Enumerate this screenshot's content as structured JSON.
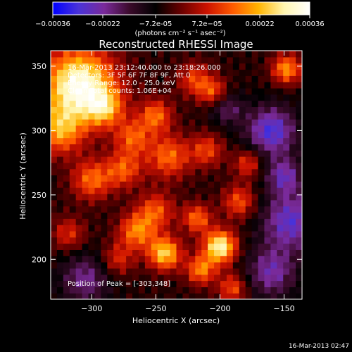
{
  "colorbar": {
    "tick_labels": [
      "-0.00036",
      "-0.00022",
      "-7.2e-05",
      "7.2e-05",
      "0.00022",
      "0.00036"
    ],
    "range": [
      -0.00036,
      0.00036
    ],
    "units": "(photons cm⁻² s⁻¹ asec⁻²)",
    "stops": [
      "#0000ff",
      "#4a33d8",
      "#7a2a9a",
      "#3a0a2a",
      "#000000",
      "#6a0000",
      "#cc1200",
      "#ff5a00",
      "#ffb400",
      "#fff6b0",
      "#ffffff"
    ]
  },
  "chart_data": {
    "type": "heatmap",
    "title": "Reconstructed RHESSI Image",
    "xlabel": "Heliocentric X (arcsec)",
    "ylabel": "Heliocentric Y (arcsec)",
    "xlim": [
      -332,
      -136
    ],
    "ylim": [
      169,
      362
    ],
    "x_ticks": [
      -300,
      -250,
      -200,
      -150
    ],
    "x_tick_labels": [
      "-300",
      "-250",
      "-200",
      "-150"
    ],
    "y_ticks": [
      200,
      250,
      300,
      350
    ],
    "y_tick_labels": [
      "200",
      "250",
      "300",
      "350"
    ],
    "grid": false,
    "annotations": [
      "16-Mar-2013 23:12:40.000 to 23:18:26.000",
      "Detectors: 3F 5F 6F 7F 8F 9F, Att 0",
      "Energy Range: 12.0 - 25.0 keV",
      "Clean      Total counts: 1.06E+04"
    ],
    "peak_label": "Position of Peak = [-303,348]",
    "peak": [
      -303,
      348
    ],
    "value_range": [
      -0.00036,
      0.00036
    ],
    "sources": [
      {
        "x": -310,
        "y": 335,
        "amp": 1.0,
        "sigma": 20
      },
      {
        "x": -325,
        "y": 300,
        "amp": 0.55,
        "sigma": 13
      },
      {
        "x": -290,
        "y": 318,
        "amp": 0.5,
        "sigma": 10
      },
      {
        "x": -268,
        "y": 295,
        "amp": 0.45,
        "sigma": 10
      },
      {
        "x": -250,
        "y": 312,
        "amp": 0.5,
        "sigma": 9
      },
      {
        "x": -220,
        "y": 340,
        "amp": 0.4,
        "sigma": 9
      },
      {
        "x": -205,
        "y": 330,
        "amp": 0.45,
        "sigma": 8
      },
      {
        "x": -148,
        "y": 348,
        "amp": 0.6,
        "sigma": 8
      },
      {
        "x": -300,
        "y": 262,
        "amp": 0.5,
        "sigma": 11
      },
      {
        "x": -275,
        "y": 270,
        "amp": 0.45,
        "sigma": 10
      },
      {
        "x": -240,
        "y": 280,
        "amp": 0.5,
        "sigma": 12
      },
      {
        "x": -210,
        "y": 285,
        "amp": 0.4,
        "sigma": 9
      },
      {
        "x": -185,
        "y": 245,
        "amp": 0.45,
        "sigma": 9
      },
      {
        "x": -178,
        "y": 275,
        "amp": 0.4,
        "sigma": 8
      },
      {
        "x": -250,
        "y": 238,
        "amp": 0.45,
        "sigma": 10
      },
      {
        "x": -265,
        "y": 222,
        "amp": 0.55,
        "sigma": 10
      },
      {
        "x": -243,
        "y": 205,
        "amp": 0.75,
        "sigma": 9
      },
      {
        "x": -200,
        "y": 210,
        "amp": 0.9,
        "sigma": 9
      },
      {
        "x": -218,
        "y": 232,
        "amp": 0.5,
        "sigma": 8
      },
      {
        "x": -215,
        "y": 192,
        "amp": 0.55,
        "sigma": 8
      },
      {
        "x": -190,
        "y": 178,
        "amp": 0.45,
        "sigma": 8
      },
      {
        "x": -280,
        "y": 200,
        "amp": 0.35,
        "sigma": 9
      },
      {
        "x": -318,
        "y": 220,
        "amp": 0.35,
        "sigma": 9
      },
      {
        "x": -160,
        "y": 300,
        "amp": -0.6,
        "sigma": 14
      },
      {
        "x": -145,
        "y": 230,
        "amp": -0.55,
        "sigma": 16
      },
      {
        "x": -160,
        "y": 190,
        "amp": -0.45,
        "sigma": 14
      },
      {
        "x": -305,
        "y": 185,
        "amp": -0.4,
        "sigma": 14
      },
      {
        "x": -195,
        "y": 318,
        "amp": -0.35,
        "sigma": 9
      },
      {
        "x": -150,
        "y": 265,
        "amp": -0.45,
        "sigma": 10
      }
    ]
  },
  "footer": {
    "date": "16-Mar-2013 02:47"
  }
}
